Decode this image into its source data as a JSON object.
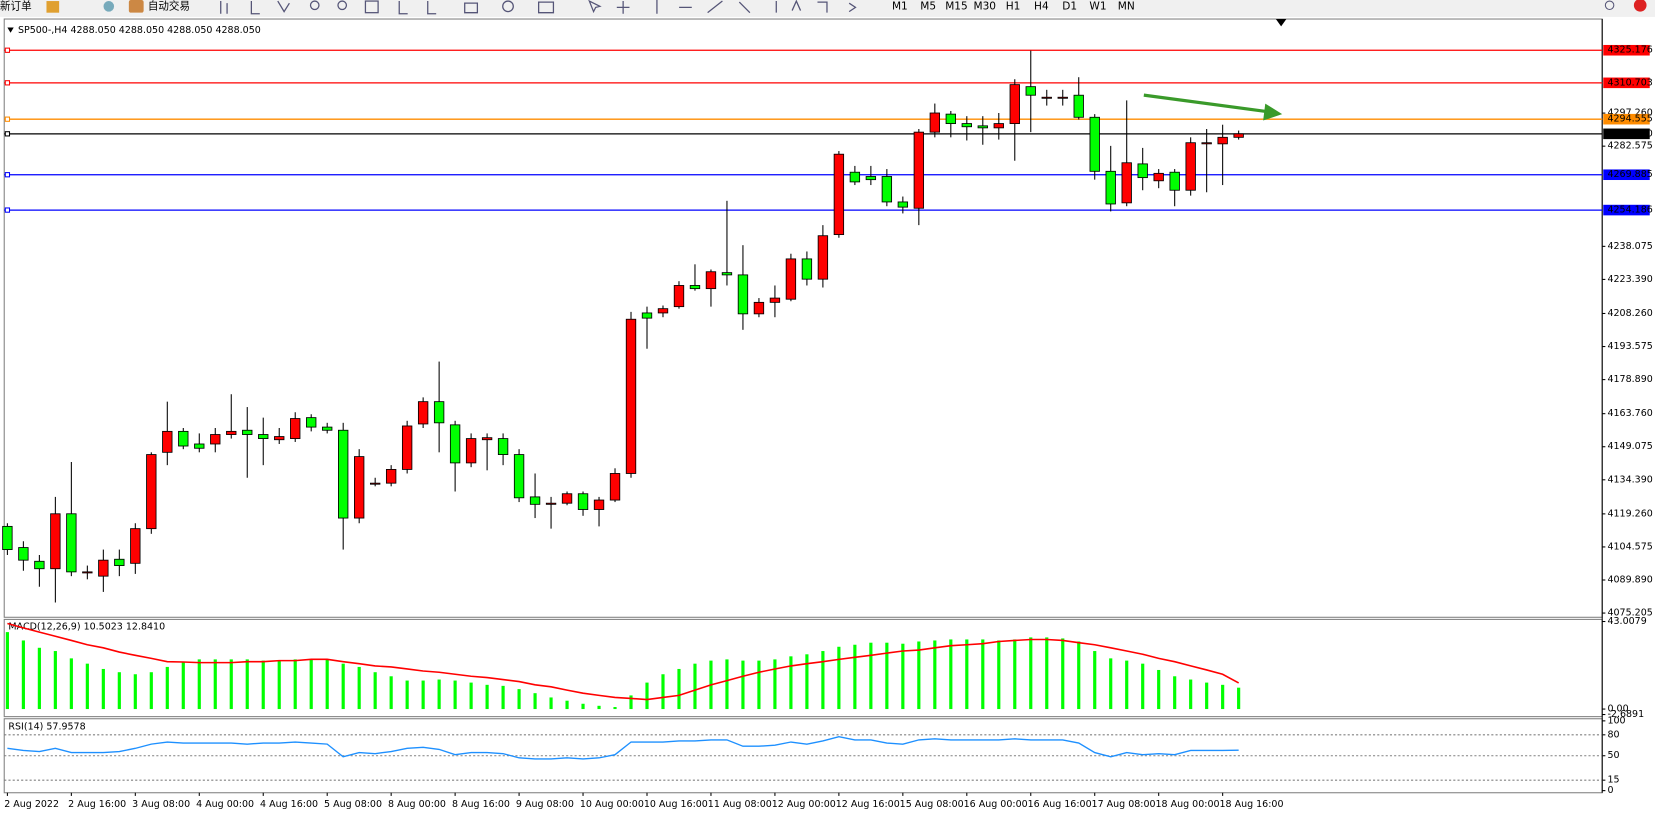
{
  "toolbar": {
    "buttons": [
      "新订单",
      "自动交易"
    ],
    "timeframes": [
      "M1",
      "M5",
      "M15",
      "M30",
      "H1",
      "H4",
      "D1",
      "W1",
      "MN"
    ]
  },
  "chart_data": [
    {
      "type": "candlestick",
      "title": "SP500-,H4  4288.050 4288.050 4288.050 4288.050",
      "up_color": "#ff0000",
      "down_color": "#00ff00",
      "categories": [
        "2 Aug 2022",
        null,
        null,
        null,
        "2 Aug 16:00",
        null,
        null,
        null,
        "3 Aug 08:00",
        null,
        null,
        null,
        "4 Aug 00:00",
        null,
        null,
        null,
        "4 Aug 16:00",
        null,
        null,
        null,
        "5 Aug 08:00",
        null,
        null,
        null,
        "8 Aug 00:00",
        null,
        null,
        null,
        "8 Aug 16:00",
        null,
        null,
        null,
        "9 Aug 08:00",
        null,
        null,
        null,
        "10 Aug 00:00",
        null,
        null,
        null,
        "10 Aug 16:00",
        null,
        null,
        null,
        "11 Aug 08:00",
        null,
        null,
        null,
        "12 Aug 00:00",
        null,
        null,
        null,
        "12 Aug 16:00",
        null,
        null,
        null,
        "15 Aug 08:00",
        null,
        null,
        null,
        "16 Aug 00:00",
        null,
        null,
        null,
        "16 Aug 16:00",
        null,
        null,
        null,
        "17 Aug 08:00",
        null,
        null,
        null,
        "18 Aug 00:00",
        null,
        null,
        null,
        "18 Aug 16:00",
        null
      ],
      "ohlc": [
        [
          4113.7,
          4115.1,
          4101.0,
          4103.4
        ],
        [
          4104.3,
          4107.1,
          4094.0,
          4098.7
        ],
        [
          4098.2,
          4101.0,
          4086.9,
          4094.9
        ],
        [
          4094.9,
          4126.8,
          4079.9,
          4119.3
        ],
        [
          4119.3,
          4142.3,
          4091.6,
          4093.5
        ],
        [
          4093.5,
          4096.3,
          4090.2,
          4093.5
        ],
        [
          4091.6,
          4103.4,
          4084.6,
          4098.7
        ],
        [
          4099.1,
          4103.4,
          4091.6,
          4096.3
        ],
        [
          4097.3,
          4115.1,
          4092.6,
          4112.7
        ],
        [
          4112.7,
          4146.6,
          4110.4,
          4145.6
        ],
        [
          4146.6,
          4169.1,
          4140.9,
          4155.9
        ],
        [
          4155.9,
          4157.4,
          4148.0,
          4149.4
        ],
        [
          4150.3,
          4155.0,
          4146.6,
          4148.4
        ],
        [
          4150.3,
          4157.4,
          4146.6,
          4154.5
        ],
        [
          4154.5,
          4172.4,
          4152.7,
          4155.9
        ],
        [
          4156.4,
          4166.7,
          4135.3,
          4154.5
        ],
        [
          4154.5,
          4162.0,
          4140.9,
          4152.7
        ],
        [
          4152.2,
          4157.4,
          4150.3,
          4153.6
        ],
        [
          4152.7,
          4164.4,
          4151.2,
          4161.6
        ],
        [
          4162.0,
          4163.5,
          4155.9,
          4157.8
        ],
        [
          4157.8,
          4159.7,
          4155.0,
          4156.4
        ],
        [
          4156.4,
          4159.7,
          4103.4,
          4117.4
        ],
        [
          4117.4,
          4148.0,
          4115.1,
          4144.7
        ],
        [
          4132.5,
          4135.3,
          4131.5,
          4132.9
        ],
        [
          4132.9,
          4140.9,
          4131.5,
          4139.0
        ],
        [
          4139.0,
          4160.6,
          4137.2,
          4158.3
        ],
        [
          4159.2,
          4171.0,
          4157.4,
          4169.1
        ],
        [
          4169.1,
          4186.9,
          4146.6,
          4159.7
        ],
        [
          4158.8,
          4160.6,
          4129.2,
          4141.9
        ],
        [
          4141.9,
          4155.0,
          4140.0,
          4152.7
        ],
        [
          4152.2,
          4155.0,
          4138.6,
          4153.1
        ],
        [
          4152.7,
          4155.0,
          4140.9,
          4145.6
        ],
        [
          4145.6,
          4148.0,
          4124.5,
          4126.4
        ],
        [
          4126.8,
          4137.2,
          4117.4,
          4123.5
        ],
        [
          4123.5,
          4126.8,
          4112.7,
          4124.0
        ],
        [
          4124.0,
          4129.2,
          4123.1,
          4128.2
        ],
        [
          4128.2,
          4129.2,
          4118.4,
          4121.2
        ],
        [
          4121.2,
          4126.8,
          4113.7,
          4125.4
        ],
        [
          4125.4,
          4139.5,
          4124.5,
          4137.2
        ],
        [
          4137.2,
          4209.0,
          4135.3,
          4205.7
        ],
        [
          4208.5,
          4211.3,
          4192.6,
          4206.2
        ],
        [
          4208.5,
          4211.8,
          4206.6,
          4210.4
        ],
        [
          4211.3,
          4222.6,
          4210.4,
          4220.7
        ],
        [
          4220.7,
          4230.1,
          4218.4,
          4219.3
        ],
        [
          4219.3,
          4227.8,
          4211.3,
          4226.8
        ],
        [
          4226.4,
          4258.3,
          4220.7,
          4225.4
        ],
        [
          4225.4,
          4238.6,
          4201.0,
          4208.1
        ],
        [
          4208.1,
          4215.1,
          4206.6,
          4213.2
        ],
        [
          4213.2,
          4220.7,
          4206.6,
          4215.1
        ],
        [
          4214.6,
          4234.8,
          4213.7,
          4232.5
        ],
        [
          4232.5,
          4235.8,
          4220.7,
          4223.5
        ],
        [
          4223.5,
          4247.5,
          4219.8,
          4242.8
        ],
        [
          4243.3,
          4280.4,
          4241.9,
          4279.0
        ],
        [
          4271.0,
          4273.8,
          4265.3,
          4266.7
        ],
        [
          4269.1,
          4273.8,
          4265.3,
          4267.7
        ],
        [
          4269.1,
          4272.4,
          4255.9,
          4257.8
        ],
        [
          4257.8,
          4260.2,
          4252.7,
          4255.5
        ],
        [
          4255.0,
          4290.2,
          4247.5,
          4288.8
        ],
        [
          4288.8,
          4301.5,
          4286.5,
          4297.3
        ],
        [
          4296.8,
          4298.2,
          4286.5,
          4292.6
        ],
        [
          4292.6,
          4295.9,
          4285.1,
          4291.2
        ],
        [
          4291.6,
          4295.9,
          4283.2,
          4290.7
        ],
        [
          4290.7,
          4297.3,
          4285.5,
          4292.6
        ],
        [
          4292.6,
          4312.3,
          4276.1,
          4309.9
        ],
        [
          4309.0,
          4325.0,
          4288.8,
          4305.2
        ],
        [
          4304.3,
          4307.6,
          4300.6,
          4304.3
        ],
        [
          4304.3,
          4307.6,
          4300.6,
          4304.3
        ],
        [
          4305.2,
          4313.2,
          4294.4,
          4295.4
        ],
        [
          4295.4,
          4296.8,
          4267.7,
          4271.4
        ],
        [
          4271.4,
          4282.7,
          4253.6,
          4256.9
        ],
        [
          4257.4,
          4302.9,
          4255.9,
          4275.2
        ],
        [
          4274.7,
          4281.8,
          4263.0,
          4268.6
        ],
        [
          4267.2,
          4272.4,
          4263.9,
          4270.5
        ],
        [
          4271.0,
          4272.4,
          4255.9,
          4263.0
        ],
        [
          4263.0,
          4286.5,
          4260.6,
          4284.1
        ],
        [
          4283.6,
          4290.2,
          4262.1,
          4284.1
        ],
        [
          4283.6,
          4292.1,
          4265.3,
          4286.5
        ],
        [
          4286.5,
          4289.5,
          4285.5,
          4288.05
        ]
      ],
      "ylim": [
        4073.8,
        4338.1
      ],
      "yticks": [
        {
          "value": 4297.26,
          "label": "4297.260"
        },
        4282.575,
        4238.075,
        {
          "value": 4223.39,
          "label": "4223.390"
        },
        {
          "value": 4208.26,
          "label": "4208.260"
        },
        4193.575,
        {
          "value": 4178.89,
          "label": "4178.890"
        },
        {
          "value": 4163.76,
          "label": "4163.760"
        },
        4149.075,
        {
          "value": 4134.39,
          "label": "4134.390"
        },
        {
          "value": 4119.26,
          "label": "4119.260"
        },
        4104.575,
        {
          "value": 4089.89,
          "label": "4089.890"
        },
        4075.205
      ],
      "levels": [
        {
          "value": 4325.176,
          "color": "#ff0000"
        },
        {
          "value": 4310.703,
          "color": "#ff0000"
        },
        {
          "value": 4294.555,
          "color": "#ff8c00"
        },
        {
          "value": 4288.05,
          "label": "4288.050",
          "color": "#000000"
        },
        {
          "value": 4269.885,
          "color": "#0000ff"
        },
        {
          "value": 4254.186,
          "color": "#0000ff"
        }
      ]
    },
    {
      "type": "macd",
      "title": "MACD(12,26,9) 10.5023 12.8410",
      "histogram": {
        "color": "#00ff00",
        "values": [
          37.8,
          33.7,
          30.1,
          28.5,
          24.9,
          22.3,
          19.7,
          18.1,
          17.1,
          18.1,
          20.7,
          23.3,
          24.4,
          24.4,
          24.4,
          24.4,
          23.8,
          23.8,
          24.4,
          24.4,
          24.4,
          22.3,
          20.7,
          18.1,
          16.1,
          14.0,
          14.0,
          14.5,
          14.0,
          13.0,
          11.9,
          11.4,
          9.8,
          7.8,
          5.7,
          4.1,
          2.6,
          1.6,
          1.0,
          6.7,
          13.0,
          17.1,
          19.7,
          22.3,
          23.8,
          24.4,
          23.8,
          23.8,
          24.4,
          25.9,
          26.9,
          28.5,
          30.6,
          31.6,
          32.6,
          32.6,
          32.1,
          33.2,
          33.7,
          34.2,
          34.2,
          34.2,
          33.7,
          34.2,
          35.2,
          35.2,
          34.7,
          33.2,
          28.5,
          24.9,
          23.8,
          22.3,
          19.2,
          16.1,
          14.5,
          13.0,
          11.9,
          10.5023
        ]
      },
      "signal": {
        "color": "#ff0000",
        "values": [
          42.0,
          39.9,
          37.8,
          35.8,
          33.7,
          31.6,
          30.1,
          28.0,
          26.4,
          24.9,
          23.3,
          23.1,
          22.8,
          22.8,
          22.8,
          23.3,
          23.3,
          23.8,
          23.8,
          24.4,
          24.4,
          23.3,
          22.3,
          21.2,
          20.7,
          19.7,
          18.7,
          18.1,
          17.1,
          16.1,
          15.5,
          14.5,
          13.5,
          11.9,
          10.9,
          9.3,
          7.8,
          6.7,
          5.7,
          5.2,
          4.7,
          5.7,
          6.7,
          9.3,
          11.9,
          14.0,
          16.1,
          18.1,
          19.7,
          21.2,
          22.3,
          23.3,
          24.4,
          25.4,
          26.4,
          27.5,
          28.5,
          29.0,
          30.1,
          31.1,
          31.6,
          32.1,
          33.2,
          33.7,
          34.2,
          34.2,
          33.7,
          32.6,
          31.6,
          30.1,
          28.5,
          26.9,
          24.9,
          23.3,
          21.2,
          19.2,
          17.1,
          12.841
        ]
      },
      "ylim": [
        -2.6891,
        43.0079
      ],
      "yticks": [
        43.0079,
        {
          "value": 0,
          "label": "0.00"
        },
        -2.6891
      ]
    },
    {
      "type": "line",
      "title": "RSI(14) 57.9578",
      "color": "#1e90ff",
      "values": [
        60.6,
        57.6,
        56.1,
        60.6,
        54.5,
        54.5,
        54.5,
        56.1,
        60.6,
        66.7,
        69.7,
        68.2,
        68.2,
        68.2,
        68.2,
        66.7,
        68.2,
        68.2,
        69.7,
        68.2,
        66.7,
        48.5,
        54.5,
        53.0,
        56.1,
        60.6,
        62.1,
        59.1,
        51.5,
        54.5,
        54.5,
        53.0,
        47.0,
        45.5,
        45.5,
        47.0,
        45.5,
        47.0,
        51.5,
        69.7,
        69.7,
        69.7,
        71.2,
        71.2,
        72.7,
        72.7,
        63.6,
        63.6,
        65.2,
        69.7,
        66.7,
        71.2,
        77.3,
        72.7,
        72.7,
        68.2,
        66.7,
        72.7,
        74.2,
        72.7,
        72.7,
        72.7,
        72.7,
        74.2,
        72.7,
        72.7,
        72.7,
        68.2,
        54.5,
        48.5,
        54.5,
        51.5,
        53.0,
        51.5,
        57.6,
        57.6,
        57.6,
        57.9578
      ],
      "ylim": [
        0,
        100
      ],
      "yticks": [
        100,
        80,
        50,
        15,
        0
      ],
      "grid": true
    }
  ]
}
